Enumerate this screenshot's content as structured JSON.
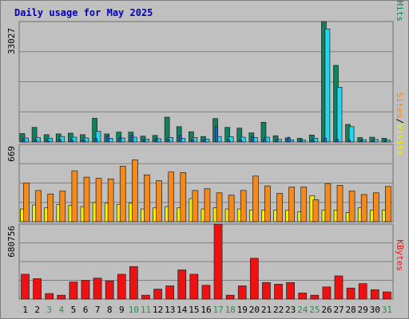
{
  "title": "Daily usage for May 2025",
  "colors": {
    "background": "#c0c0c0",
    "plot_background": "#c0c0c0",
    "title": "#0000c0",
    "hits": "#11805e",
    "files": "#22d6f0",
    "pages": "#1e5bd8",
    "visits": "#f5f000",
    "sites": "#f58a1a",
    "kbytes": "#ee1111",
    "weekday_text": "#000000",
    "weekend_text": "#2e8b57",
    "grid": "#808080"
  },
  "panels": {
    "top": {
      "max_label": "33027",
      "ylim": [
        0,
        33027
      ],
      "legend": [
        {
          "key": "pages",
          "label": "Pages"
        },
        {
          "sep": "/"
        },
        {
          "key": "files",
          "label": "Files"
        },
        {
          "sep": "/"
        },
        {
          "key": "hits",
          "label": "Hits"
        }
      ]
    },
    "middle": {
      "max_label": "669",
      "ylim": [
        0,
        669
      ],
      "legend": [
        {
          "key": "sites",
          "label": "Sites"
        },
        {
          "sep": "/"
        },
        {
          "key": "visits",
          "label": "Visits"
        }
      ]
    },
    "bottom": {
      "max_label": "680756",
      "ylim": [
        0,
        680756
      ],
      "legend": [
        {
          "key": "kbytes",
          "label": "KBytes"
        }
      ]
    }
  },
  "chart_data": {
    "type": "bar",
    "title": "Daily usage for May 2025",
    "x": [
      "1",
      "2",
      "3",
      "4",
      "5",
      "6",
      "7",
      "8",
      "9",
      "10",
      "11",
      "12",
      "13",
      "14",
      "15",
      "16",
      "17",
      "18",
      "19",
      "20",
      "21",
      "22",
      "23",
      "24",
      "25",
      "26",
      "27",
      "28",
      "29",
      "30",
      "31"
    ],
    "weekend_days": [
      "3",
      "4",
      "10",
      "11",
      "17",
      "18",
      "24",
      "25",
      "31"
    ],
    "series": [
      {
        "name": "Hits",
        "panel": "top",
        "values": [
          2300,
          4000,
          2000,
          2200,
          2400,
          2000,
          6500,
          2200,
          2700,
          2700,
          1600,
          1800,
          6800,
          4200,
          2800,
          1500,
          6400,
          4000,
          3800,
          2500,
          5400,
          1700,
          1100,
          1000,
          1900,
          33027,
          21000,
          4800,
          1200,
          1300,
          1000
        ]
      },
      {
        "name": "Files",
        "panel": "top",
        "values": [
          1100,
          1200,
          1000,
          1500,
          1300,
          1100,
          2900,
          1000,
          1100,
          1300,
          800,
          900,
          1200,
          1000,
          1200,
          800,
          1500,
          1400,
          1300,
          1200,
          1300,
          700,
          600,
          500,
          1000,
          31000,
          15000,
          4200,
          600,
          700,
          500
        ]
      },
      {
        "name": "Pages",
        "panel": "top",
        "values": [
          800,
          600,
          500,
          700,
          600,
          500,
          900,
          1700,
          900,
          1800,
          500,
          700,
          700,
          1800,
          700,
          500,
          4200,
          600,
          600,
          1500,
          900,
          500,
          1300,
          500,
          600,
          1000,
          700,
          500,
          400,
          400,
          300
        ]
      },
      {
        "name": "Visits",
        "panel": "middle",
        "values": [
          110,
          145,
          120,
          150,
          140,
          130,
          165,
          160,
          150,
          160,
          110,
          120,
          130,
          120,
          200,
          110,
          120,
          110,
          110,
          100,
          100,
          100,
          100,
          85,
          225,
          100,
          100,
          80,
          120,
          100,
          100
        ]
      },
      {
        "name": "Sites",
        "panel": "middle",
        "values": [
          335,
          270,
          240,
          265,
          440,
          385,
          375,
          370,
          480,
          535,
          405,
          355,
          430,
          425,
          270,
          285,
          250,
          230,
          270,
          395,
          310,
          245,
          300,
          300,
          190,
          330,
          315,
          265,
          235,
          250,
          305
        ]
      },
      {
        "name": "KBytes",
        "panel": "bottom",
        "values": [
          225000,
          185000,
          50000,
          35000,
          155000,
          170000,
          190000,
          165000,
          225000,
          295000,
          35000,
          90000,
          120000,
          265000,
          225000,
          125000,
          680756,
          35000,
          120000,
          370000,
          150000,
          135000,
          150000,
          55000,
          35000,
          110000,
          210000,
          100000,
          140000,
          85000,
          65000
        ]
      }
    ]
  }
}
